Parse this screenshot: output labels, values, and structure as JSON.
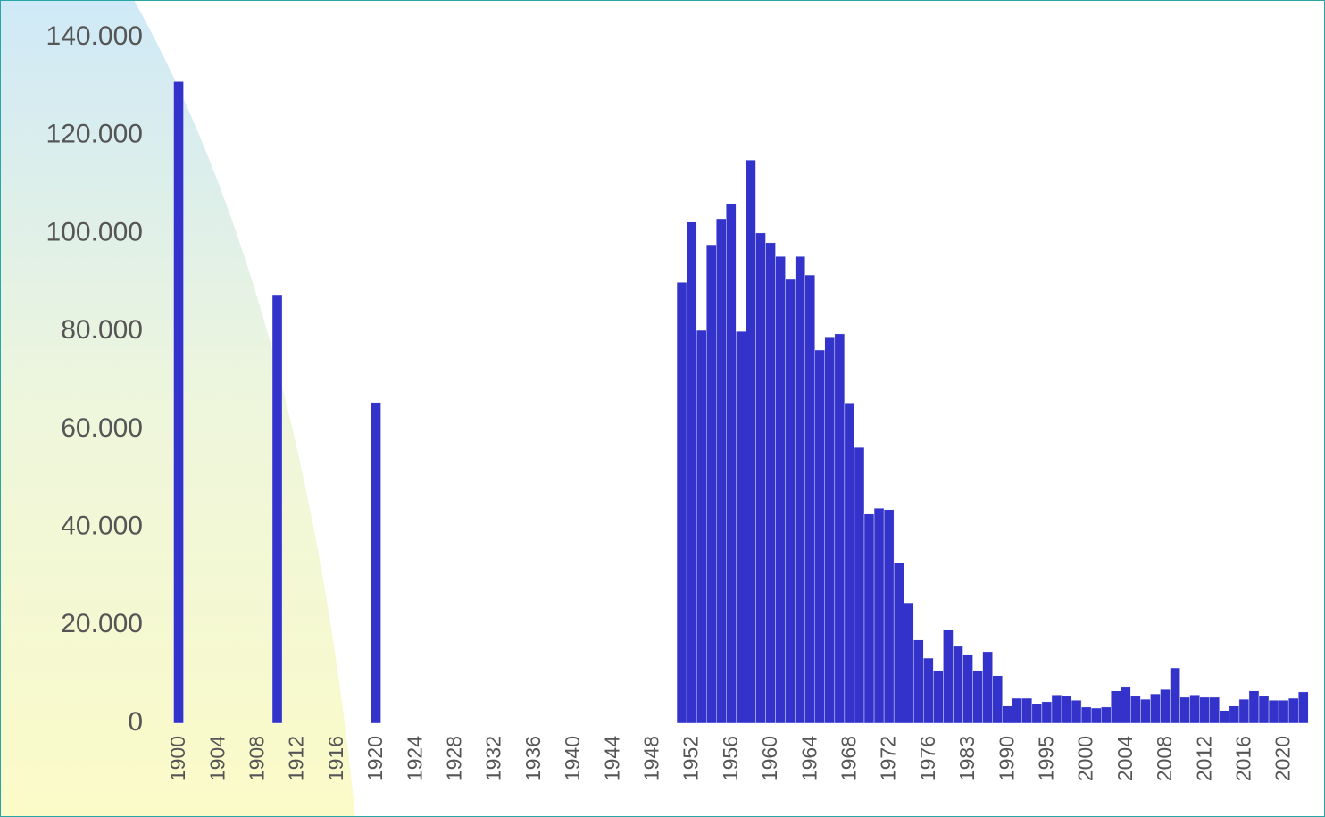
{
  "chart_data": {
    "type": "bar",
    "categories": [
      "1900",
      null,
      null,
      null,
      "1904",
      null,
      null,
      null,
      "1908",
      null,
      null,
      null,
      "1912",
      null,
      null,
      null,
      "1916",
      null,
      null,
      null,
      "1920",
      null,
      null,
      null,
      "1924",
      null,
      null,
      null,
      "1928",
      null,
      null,
      null,
      "1932",
      null,
      null,
      null,
      "1936",
      null,
      null,
      null,
      "1940",
      null,
      null,
      null,
      "1944",
      null,
      null,
      null,
      "1948",
      null,
      null,
      null,
      "1952",
      null,
      null,
      null,
      "1956",
      null,
      null,
      null,
      "1960",
      null,
      null,
      null,
      "1964",
      null,
      null,
      null,
      "1968",
      null,
      null,
      null,
      "1972",
      null,
      null,
      null,
      "1976",
      null,
      null,
      null,
      "1983",
      null,
      null,
      null,
      "1990",
      null,
      null,
      null,
      "1995",
      null,
      null,
      null,
      "2000",
      null,
      null,
      null,
      "2004",
      null,
      null,
      null,
      "2008",
      null,
      null,
      null,
      "2012",
      null,
      null,
      null,
      "2016",
      null,
      null,
      null,
      "2020",
      null,
      null
    ],
    "values": [
      131000,
      null,
      null,
      null,
      null,
      null,
      null,
      null,
      null,
      null,
      87500,
      null,
      null,
      null,
      null,
      null,
      null,
      null,
      null,
      null,
      65500,
      null,
      null,
      null,
      null,
      null,
      null,
      null,
      null,
      null,
      null,
      null,
      null,
      null,
      null,
      null,
      null,
      null,
      null,
      null,
      null,
      null,
      null,
      null,
      null,
      null,
      null,
      null,
      null,
      null,
      null,
      90000,
      102300,
      80200,
      97700,
      103000,
      106100,
      80000,
      115000,
      100100,
      98100,
      95300,
      90600,
      95300,
      91500,
      76200,
      78900,
      79500,
      65400,
      56300,
      42700,
      43900,
      43600,
      32800,
      24600,
      17000,
      13300,
      10800,
      19000,
      15700,
      13900,
      10800,
      14600,
      9700,
      3500,
      5100,
      5100,
      4000,
      4400,
      5800,
      5500,
      4700,
      3300,
      3100,
      3300,
      6600,
      7500,
      5500,
      4900,
      6000,
      6900,
      11300,
      5300,
      5800,
      5300,
      5300,
      2600,
      3500,
      4900,
      6600,
      5500,
      4700,
      4700,
      5100,
      6400
    ],
    "color": "#3333cc",
    "ylim": [
      0,
      140000
    ],
    "yticks": [
      0,
      {
        "value": 20000,
        "label": "20.000"
      },
      {
        "value": 40000,
        "label": "40.000"
      },
      {
        "value": 60000,
        "label": "60.000"
      },
      {
        "value": 80000,
        "label": "80.000"
      },
      {
        "value": 100000,
        "label": "100.000"
      },
      {
        "value": 120000,
        "label": "120.000"
      },
      {
        "value": 140000,
        "label": "140.000"
      }
    ],
    "grid": false
  }
}
